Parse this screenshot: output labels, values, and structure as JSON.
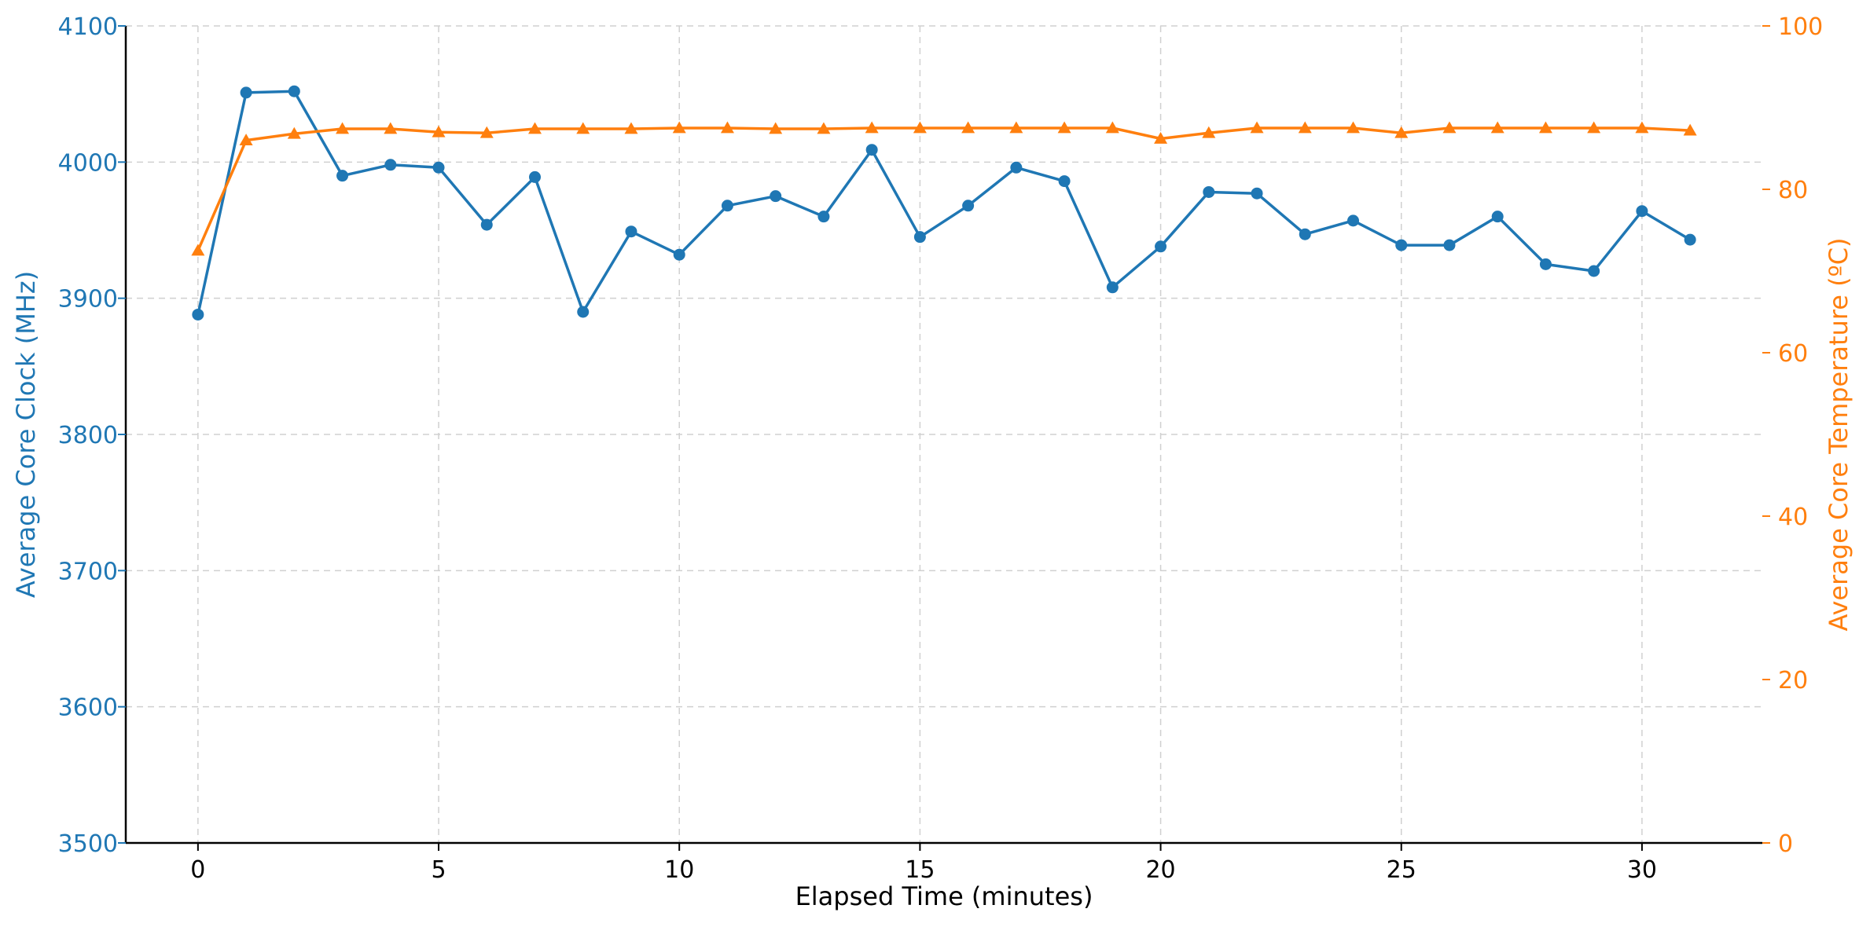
{
  "chart_data": {
    "type": "line",
    "xlabel": "Elapsed Time (minutes)",
    "ylabel_left": "Average Core Clock (MHz)",
    "ylabel_right": "Average Core Temperature (ºC)",
    "xlim": [
      -1.5,
      32.5
    ],
    "ylim_left": [
      3500,
      4100
    ],
    "ylim_right": [
      0,
      100
    ],
    "x_ticks": [
      0,
      5,
      10,
      15,
      20,
      25,
      30
    ],
    "y_ticks_left": [
      3500,
      3600,
      3700,
      3800,
      3900,
      4000,
      4100
    ],
    "y_ticks_right": [
      0,
      20,
      40,
      60,
      80,
      100
    ],
    "grid": true,
    "x": [
      0,
      1,
      2,
      3,
      4,
      5,
      6,
      7,
      8,
      9,
      10,
      11,
      12,
      13,
      14,
      15,
      16,
      17,
      18,
      19,
      20,
      21,
      22,
      23,
      24,
      25,
      26,
      27,
      28,
      29,
      30,
      31
    ],
    "series": [
      {
        "axis": "left",
        "color": "#1f77b4",
        "marker": "circle",
        "values": [
          3888,
          4051,
          4052,
          3990,
          3998,
          3996,
          3954,
          3989,
          3890,
          3949,
          3932,
          3968,
          3975,
          3960,
          4009,
          3945,
          3968,
          3996,
          3986,
          3908,
          3938,
          3978,
          3977,
          3947,
          3957,
          3939,
          3939,
          3960,
          3925,
          3920,
          3964,
          3943
        ]
      },
      {
        "axis": "right",
        "color": "#ff7f0e",
        "marker": "triangle",
        "values": [
          72.5,
          86.0,
          86.8,
          87.4,
          87.4,
          87.0,
          86.9,
          87.4,
          87.4,
          87.4,
          87.5,
          87.5,
          87.4,
          87.4,
          87.5,
          87.5,
          87.5,
          87.5,
          87.5,
          87.5,
          86.2,
          86.9,
          87.5,
          87.5,
          87.5,
          86.9,
          87.5,
          87.5,
          87.5,
          87.5,
          87.5,
          87.2
        ]
      }
    ]
  }
}
